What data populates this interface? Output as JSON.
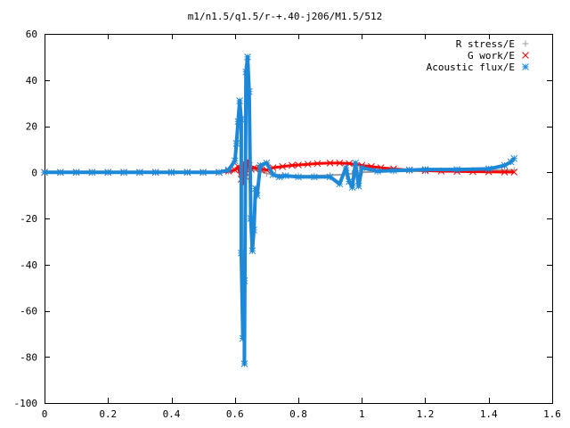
{
  "chart_data": {
    "type": "scatter",
    "title": "m1/n1.5/q1.5/r-+.40-j206/M1.5/512",
    "xlabel": "",
    "ylabel": "",
    "xlim": [
      0,
      1.6
    ],
    "ylim": [
      -100,
      60
    ],
    "xticks": [
      0,
      0.2,
      0.4,
      0.6,
      0.8,
      1,
      1.2,
      1.4,
      1.6
    ],
    "xtick_labels": [
      "0",
      "0.2",
      "0.4",
      "0.6",
      "0.8",
      "1",
      "1.2",
      "1.4",
      "1.6"
    ],
    "yticks": [
      -100,
      -80,
      -60,
      -40,
      -20,
      0,
      20,
      40,
      60
    ],
    "ytick_labels": [
      "-100",
      "-80",
      "-60",
      "-40",
      "-20",
      "0",
      "20",
      "40",
      "60"
    ],
    "grid": false,
    "legend_position": "top-right",
    "series": [
      {
        "name": "R stress/E",
        "marker": "plus",
        "color": "#a0a0a0",
        "x": [
          0.0,
          0.05,
          0.1,
          0.15,
          0.2,
          0.25,
          0.3,
          0.35,
          0.4,
          0.45,
          0.5,
          0.55,
          0.58,
          0.6,
          0.61,
          0.62,
          0.63,
          0.64,
          0.65,
          0.66,
          0.68,
          0.7,
          0.72,
          0.75,
          0.8,
          0.85,
          0.9,
          0.95,
          0.97,
          1.0,
          1.05,
          1.1,
          1.15,
          1.2,
          1.25,
          1.3,
          1.35,
          1.4,
          1.45,
          1.48
        ],
        "y": [
          0,
          0,
          0,
          0,
          0,
          0,
          0,
          0,
          0,
          0,
          0,
          0,
          0.2,
          1.0,
          2.0,
          0.5,
          -1.5,
          1.5,
          2.0,
          1.0,
          0.5,
          -0.5,
          -0.8,
          -1.2,
          -1.5,
          -1.5,
          -1.2,
          -1.0,
          -0.5,
          0,
          0.3,
          0.4,
          0.5,
          0.6,
          0.8,
          0.8,
          0.9,
          1.0,
          1.0,
          1.0
        ]
      },
      {
        "name": "G work/E",
        "marker": "cross",
        "color": "#ff0000",
        "x": [
          0.0,
          0.05,
          0.1,
          0.15,
          0.2,
          0.25,
          0.3,
          0.35,
          0.4,
          0.45,
          0.5,
          0.55,
          0.58,
          0.6,
          0.61,
          0.62,
          0.625,
          0.63,
          0.635,
          0.64,
          0.645,
          0.65,
          0.66,
          0.68,
          0.7,
          0.72,
          0.75,
          0.78,
          0.8,
          0.83,
          0.86,
          0.9,
          0.93,
          0.96,
          1.0,
          1.03,
          1.06,
          1.1,
          1.15,
          1.2,
          1.25,
          1.3,
          1.35,
          1.4,
          1.45,
          1.48
        ],
        "y": [
          0,
          0,
          0,
          0,
          0,
          0,
          0,
          0,
          0,
          0,
          0,
          0,
          0.5,
          1.0,
          2.5,
          -3.0,
          -5.0,
          4.0,
          -2.0,
          5.0,
          3.0,
          1.5,
          2.0,
          1.5,
          1.0,
          2.0,
          2.5,
          3.0,
          3.2,
          3.5,
          3.8,
          4.0,
          4.0,
          3.8,
          3.0,
          2.5,
          2.0,
          1.5,
          1.0,
          0.7,
          0.5,
          0.4,
          0.3,
          0.2,
          0.1,
          0.1
        ]
      },
      {
        "name": "Acoustic flux/E",
        "marker": "star",
        "color": "#1e88d8",
        "x": [
          0.0,
          0.05,
          0.1,
          0.15,
          0.2,
          0.25,
          0.3,
          0.35,
          0.4,
          0.45,
          0.5,
          0.55,
          0.58,
          0.6,
          0.605,
          0.61,
          0.615,
          0.62,
          0.62,
          0.625,
          0.63,
          0.63,
          0.635,
          0.64,
          0.645,
          0.65,
          0.655,
          0.66,
          0.665,
          0.67,
          0.68,
          0.7,
          0.72,
          0.74,
          0.76,
          0.8,
          0.85,
          0.9,
          0.93,
          0.95,
          0.96,
          0.97,
          0.98,
          0.99,
          1.0,
          1.05,
          1.1,
          1.15,
          1.2,
          1.3,
          1.4,
          1.45,
          1.47,
          1.48
        ],
        "y": [
          0,
          0,
          0,
          0,
          0,
          0,
          0,
          0,
          0,
          0,
          0,
          0,
          1.0,
          5.0,
          12.5,
          22.0,
          31.0,
          23.0,
          -35.0,
          -72.0,
          -47.0,
          -83.0,
          43.5,
          50.0,
          35.0,
          -20.0,
          -34.0,
          -25.0,
          -7.0,
          -10.0,
          3.0,
          4.0,
          -1.0,
          -2.0,
          -1.5,
          -2.0,
          -2.0,
          -2.0,
          -5.0,
          2.0,
          -4.0,
          -6.5,
          4.0,
          -6.0,
          2.0,
          0.5,
          0.8,
          1.0,
          1.2,
          1.2,
          1.5,
          3.0,
          4.5,
          6.0
        ]
      }
    ]
  }
}
